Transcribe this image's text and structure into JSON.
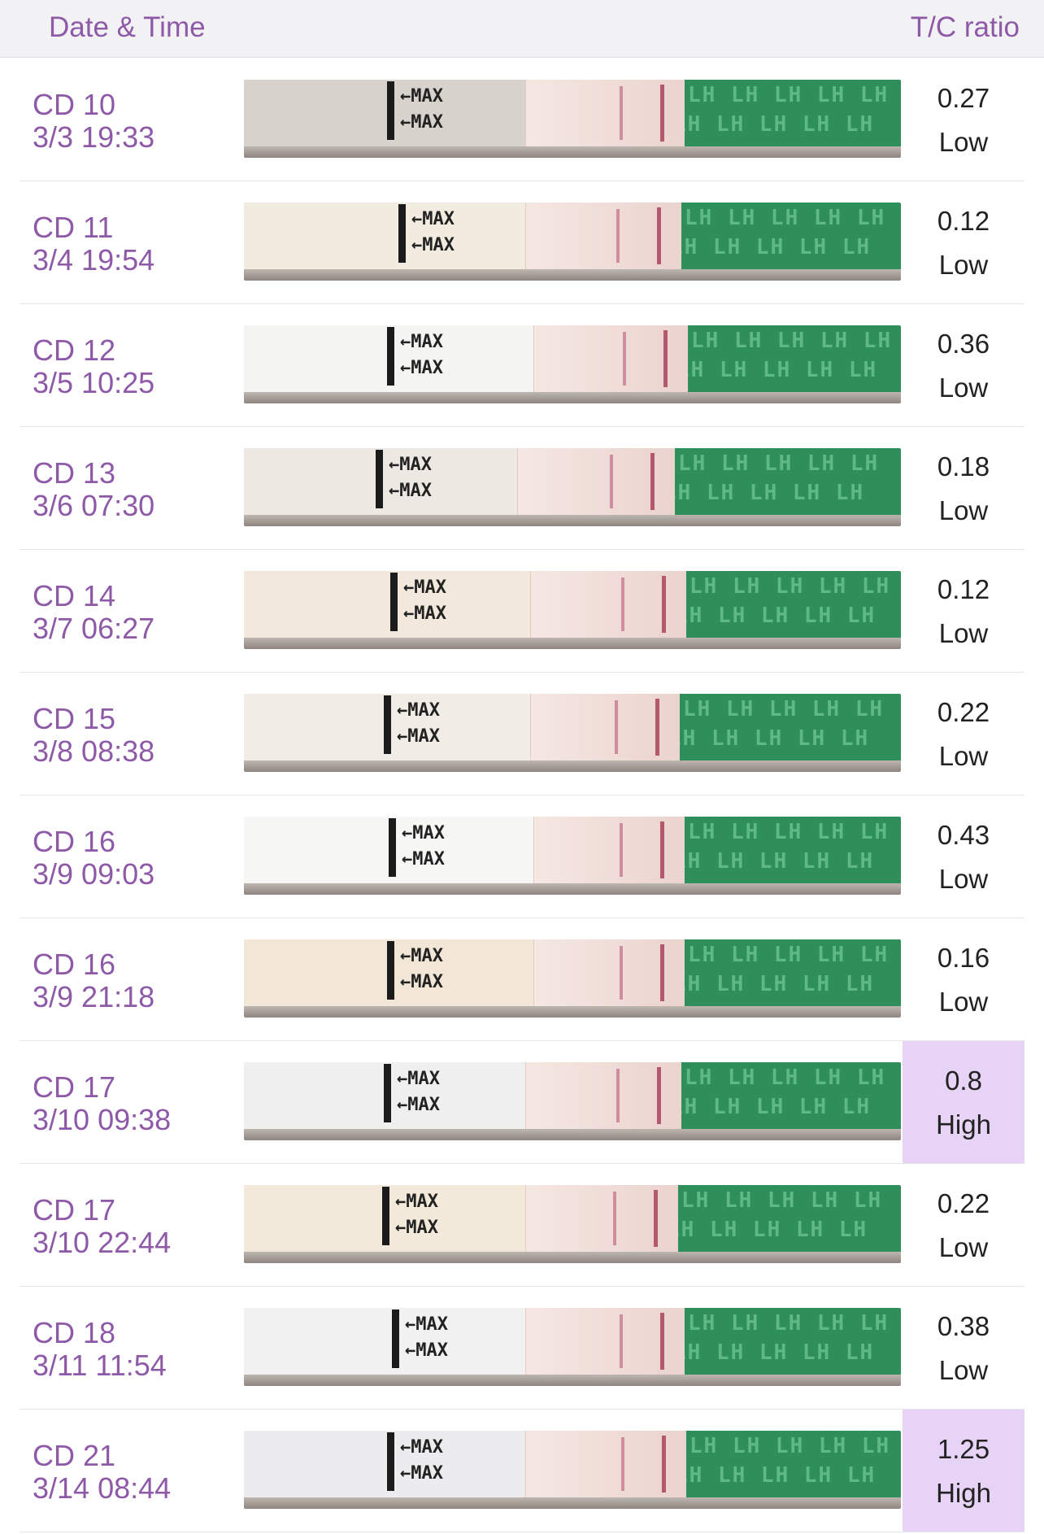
{
  "header": {
    "date_time_label": "Date & Time",
    "ratio_label": "T/C ratio"
  },
  "rows": [
    {
      "cd": "CD 10",
      "datetime": "3/3 19:33",
      "ratio": "0.27",
      "level": "Low"
    },
    {
      "cd": "CD 11",
      "datetime": "3/4 19:54",
      "ratio": "0.12",
      "level": "Low"
    },
    {
      "cd": "CD 12",
      "datetime": "3/5 10:25",
      "ratio": "0.36",
      "level": "Low"
    },
    {
      "cd": "CD 13",
      "datetime": "3/6 07:30",
      "ratio": "0.18",
      "level": "Low"
    },
    {
      "cd": "CD 14",
      "datetime": "3/7 06:27",
      "ratio": "0.12",
      "level": "Low"
    },
    {
      "cd": "CD 15",
      "datetime": "3/8 08:38",
      "ratio": "0.22",
      "level": "Low"
    },
    {
      "cd": "CD 16",
      "datetime": "3/9 09:03",
      "ratio": "0.43",
      "level": "Low"
    },
    {
      "cd": "CD 16",
      "datetime": "3/9 21:18",
      "ratio": "0.16",
      "level": "Low"
    },
    {
      "cd": "CD 17",
      "datetime": "3/10 09:38",
      "ratio": "0.8",
      "level": "High"
    },
    {
      "cd": "CD 17",
      "datetime": "3/10 22:44",
      "ratio": "0.22",
      "level": "Low"
    },
    {
      "cd": "CD 18",
      "datetime": "3/11 11:54",
      "ratio": "0.38",
      "level": "Low"
    },
    {
      "cd": "CD 21",
      "datetime": "3/14 08:44",
      "ratio": "1.25",
      "level": "High"
    }
  ],
  "strip_text": {
    "max": "←MAX",
    "lh": "LH LH LH LH LH"
  },
  "colors": {
    "accent": "#8e5aa8",
    "high_highlight": "#e6d3f5",
    "strip_green": "#2e8f5b",
    "control_line": "#b5586f"
  }
}
